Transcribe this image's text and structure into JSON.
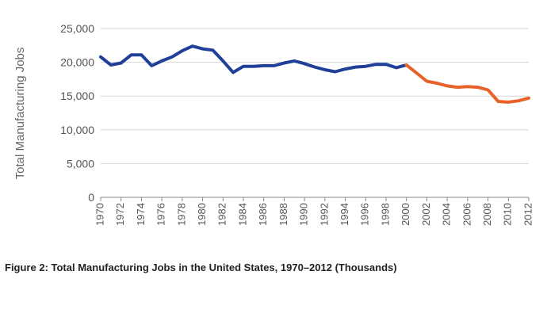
{
  "caption": "Figure 2: Total Manufacturing Jobs in the United States, 1970–2012 (Thousands)",
  "chart_data": {
    "type": "line",
    "title": "",
    "xlabel": "",
    "ylabel": "Total Manufacturing Jobs",
    "ylim": [
      0,
      25000
    ],
    "yticks": [
      "0",
      "5,000",
      "10,000",
      "15,000",
      "20,000",
      "25,000"
    ],
    "ytick_values": [
      0,
      5000,
      10000,
      15000,
      20000,
      25000
    ],
    "xlim": [
      1970,
      2012
    ],
    "xticks": [
      "1970",
      "1972",
      "1974",
      "1976",
      "1978",
      "1980",
      "1982",
      "1984",
      "1986",
      "1988",
      "1990",
      "1992",
      "1994",
      "1996",
      "1998",
      "2000",
      "2002",
      "2004",
      "2006",
      "2008",
      "2010",
      "2012"
    ],
    "grid": true,
    "legend": "none",
    "series": [
      {
        "color": "#1f3f99",
        "x": [
          1970,
          1971,
          1972,
          1973,
          1974,
          1975,
          1976,
          1977,
          1978,
          1979,
          1980,
          1981,
          1982,
          1983,
          1984,
          1985,
          1986,
          1987,
          1988,
          1989,
          1990,
          1991,
          1992,
          1993,
          1994,
          1995,
          1996,
          1997,
          1998,
          1999,
          2000
        ],
        "values": [
          20800,
          19600,
          19900,
          21100,
          21100,
          19500,
          20200,
          20800,
          21700,
          22400,
          22000,
          21800,
          20200,
          18500,
          19400,
          19400,
          19500,
          19500,
          19900,
          20200,
          19800,
          19300,
          18900,
          18600,
          19000,
          19300,
          19400,
          19700,
          19700,
          19200,
          19600
        ]
      },
      {
        "color": "#e8622a",
        "x": [
          2000,
          2001,
          2002,
          2003,
          2004,
          2005,
          2006,
          2007,
          2008,
          2009,
          2010,
          2011,
          2012
        ],
        "values": [
          19600,
          18400,
          17200,
          16900,
          16500,
          16300,
          16400,
          16300,
          15900,
          14200,
          14100,
          14300,
          14700
        ]
      }
    ]
  }
}
